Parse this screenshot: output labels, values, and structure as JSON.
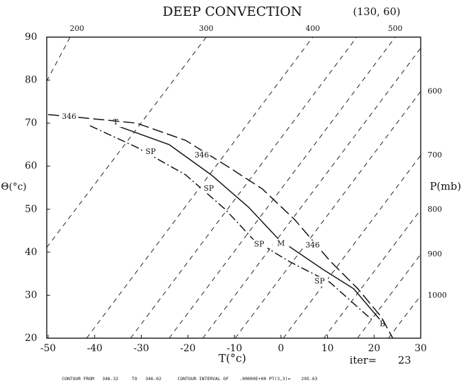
{
  "chart_data": {
    "type": "line",
    "title": "DEEP CONVECTION",
    "subtitle": "(130, 60)",
    "xlabel": "T(°c)",
    "ylabel": "Θ(°c)",
    "xlim": [
      -50,
      30
    ],
    "xticks": [
      -50,
      -40,
      -30,
      -20,
      -10,
      0,
      10,
      20,
      30
    ],
    "ylim": [
      20,
      90
    ],
    "yticks": [
      20,
      30,
      40,
      50,
      60,
      70,
      80,
      90
    ],
    "top_axis_labels": [
      "200",
      "300",
      "400",
      "500"
    ],
    "right_axis_title": "P(mb)",
    "right_axis_labels": [
      "600",
      "700",
      "800",
      "900",
      "1000"
    ],
    "iter_label": "iter=",
    "iter": 23,
    "footer": "CONTOUR FROM   346.32     TO   346.02      CONTOUR INTERVAL OF    .00000E+00 PT(3,3)=    295.63",
    "series": [
      {
        "style": "solid",
        "color": "#111111",
        "x": [
          -35.5,
          -24,
          -15,
          -7,
          -0.5,
          9,
          15.6,
          21.5
        ],
        "values": [
          69.5,
          65,
          58,
          50.5,
          43,
          36,
          31.5,
          24
        ],
        "labels": [
          {
            "text": "T",
            "x": -35.5,
            "y": 70.2
          },
          {
            "text": "M",
            "x": 0,
            "y": 42
          },
          {
            "text": "B",
            "x": 21.8,
            "y": 23.3
          }
        ]
      },
      {
        "style": "long-dash",
        "color": "#111111",
        "x": [
          -50,
          -43,
          -31,
          -20.5,
          -12,
          -4,
          3,
          10.5,
          16.5,
          21.5,
          24
        ],
        "values": [
          72,
          71.3,
          70,
          66,
          60.3,
          54.7,
          47.5,
          38,
          31.5,
          25,
          20
        ],
        "labels": [
          {
            "text": "346",
            "x": -45.5,
            "y": 71.5
          },
          {
            "text": "346",
            "x": -17,
            "y": 62.5
          },
          {
            "text": "346",
            "x": 6.8,
            "y": 41.6
          }
        ]
      },
      {
        "style": "dash-dot",
        "color": "#111111",
        "x": [
          -41,
          -31,
          -20.5,
          -12,
          -6,
          1.5,
          10.5,
          19.5
        ],
        "values": [
          69.4,
          64.4,
          58,
          50,
          43,
          38,
          33,
          24.3
        ],
        "labels": [
          {
            "text": "SP",
            "x": -28,
            "y": 63.3
          },
          {
            "text": "SP",
            "x": -15.5,
            "y": 54.8
          },
          {
            "text": "SP",
            "x": -4.7,
            "y": 41.8
          },
          {
            "text": "SP",
            "x": 8.3,
            "y": 33.2
          }
        ]
      }
    ]
  }
}
